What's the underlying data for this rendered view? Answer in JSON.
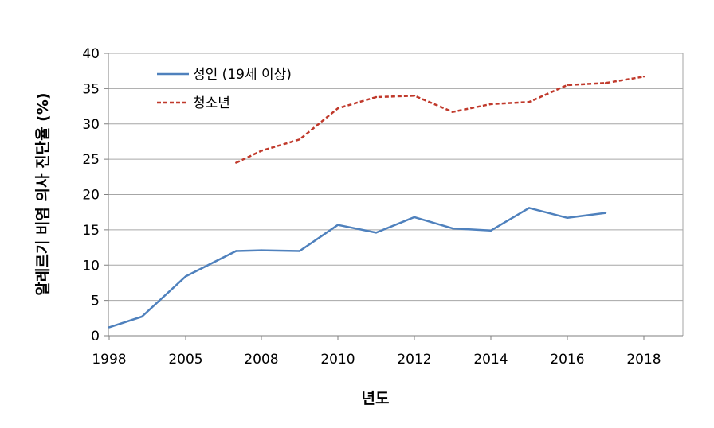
{
  "chart_data": {
    "type": "line",
    "xlabel": "년도",
    "ylabel": "알레르기 비염 의사 진단율 (%)",
    "ylim": [
      0,
      40
    ],
    "y_ticks": [
      0,
      5,
      10,
      15,
      20,
      25,
      30,
      35,
      40
    ],
    "x_ticks": [
      "1998",
      "2005",
      "2008",
      "2010",
      "2012",
      "2014",
      "2016",
      "2018"
    ],
    "grid": "horizontal",
    "legend_position": "top-left",
    "series": [
      {
        "name": "성인 (19세 이상)",
        "color": "#4f81bd",
        "style": "solid",
        "x": [
          1998,
          2001,
          2005,
          2007,
          2008,
          2009,
          2010,
          2011,
          2012,
          2013,
          2014,
          2015,
          2016,
          2017
        ],
        "values": [
          1.2,
          2.7,
          8.4,
          12.0,
          12.1,
          12.0,
          15.7,
          14.6,
          16.8,
          15.2,
          14.9,
          18.1,
          16.7,
          17.4
        ]
      },
      {
        "name": "청소년",
        "color": "#c0392b",
        "style": "dashed",
        "x": [
          2007,
          2008,
          2009,
          2010,
          2011,
          2012,
          2013,
          2014,
          2015,
          2016,
          2017,
          2018
        ],
        "values": [
          24.5,
          26.2,
          27.8,
          32.2,
          33.8,
          34.0,
          31.7,
          32.8,
          33.1,
          35.5,
          35.8,
          36.7
        ]
      }
    ]
  }
}
